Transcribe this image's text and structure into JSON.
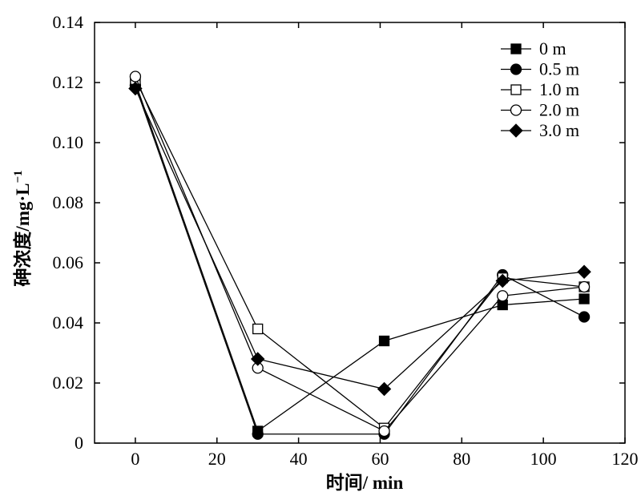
{
  "chart_data": {
    "type": "line",
    "xlabel": "时间/ min",
    "ylabel_main": "砷浓度/mg·L",
    "ylabel_sup": "−1",
    "xlim": [
      -10,
      120
    ],
    "ylim": [
      0,
      0.14
    ],
    "x_ticks": [
      0,
      20,
      40,
      60,
      80,
      100,
      120
    ],
    "y_ticks": [
      0,
      0.02,
      0.04,
      0.06,
      0.08,
      0.1,
      0.12,
      0.14
    ],
    "x_tick_labels": [
      "0",
      "20",
      "40",
      "60",
      "80",
      "100",
      "120"
    ],
    "y_tick_labels": [
      "0",
      "0.02",
      "0.04",
      "0.06",
      "0.08",
      "0.10",
      "0.12",
      "0.14"
    ],
    "grid": false,
    "legend_position": "top-right",
    "series": [
      {
        "name": "0 m",
        "marker": "square-filled",
        "x": [
          0,
          30,
          61,
          90,
          110
        ],
        "y": [
          0.12,
          0.004,
          0.034,
          0.046,
          0.048
        ]
      },
      {
        "name": "0.5 m",
        "marker": "circle-filled",
        "x": [
          0,
          30,
          61,
          90,
          110
        ],
        "y": [
          0.119,
          0.003,
          0.003,
          0.056,
          0.042
        ]
      },
      {
        "name": "1.0 m",
        "marker": "square-open",
        "x": [
          0,
          30,
          61,
          90,
          110
        ],
        "y": [
          0.121,
          0.038,
          0.005,
          0.055,
          0.052
        ]
      },
      {
        "name": "2.0 m",
        "marker": "circle-open",
        "x": [
          0,
          30,
          61,
          90,
          110
        ],
        "y": [
          0.122,
          0.025,
          0.004,
          0.049,
          0.052
        ]
      },
      {
        "name": "3.0 m",
        "marker": "diamond-filled",
        "x": [
          0,
          30,
          61,
          90,
          110
        ],
        "y": [
          0.118,
          0.028,
          0.018,
          0.054,
          0.057
        ]
      }
    ]
  }
}
